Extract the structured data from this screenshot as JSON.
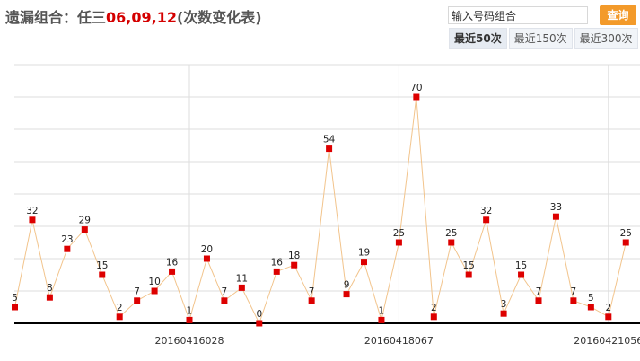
{
  "header": {
    "prefix": "遗漏组合：任三",
    "combo": "06,09,12",
    "suffix": "(次数变化表)"
  },
  "search": {
    "value": "输入号码组合"
  },
  "query_button": "查询",
  "tabs": [
    {
      "label": "最近50次",
      "active": true
    },
    {
      "label": "最近150次",
      "active": false
    },
    {
      "label": "最近300次",
      "active": false
    }
  ],
  "colors": {
    "line": "#f2c48c",
    "marker": "#dd0000",
    "grid": "#dddddd",
    "axis": "#000000"
  },
  "chart_data": {
    "type": "line",
    "values": [
      5,
      32,
      8,
      23,
      29,
      15,
      2,
      7,
      10,
      16,
      1,
      20,
      7,
      11,
      0,
      16,
      18,
      7,
      54,
      9,
      19,
      1,
      25,
      70,
      2,
      25,
      15,
      32,
      3,
      15,
      7,
      33,
      7,
      5,
      2,
      25
    ],
    "x_tick_labels": [
      {
        "index": 10,
        "label": "20160416028"
      },
      {
        "index": 22,
        "label": "20160418067"
      },
      {
        "index": 34,
        "label": "20160421056"
      }
    ],
    "ylim": [
      0,
      80
    ],
    "grid": true
  }
}
